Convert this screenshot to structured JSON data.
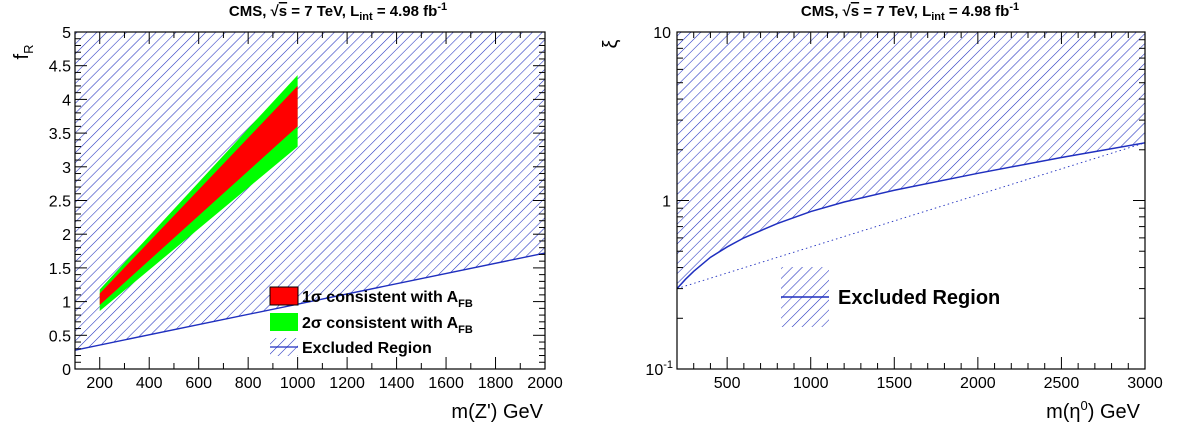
{
  "chart_data": [
    {
      "type": "area",
      "title": "CMS, √s = 7 TeV, L_int = 4.98 fb^-1",
      "title_parts": {
        "prefix": "CMS, ",
        "sqrt_symbol": "√",
        "sqrt_arg": "s",
        "energy": " = 7 TeV, L",
        "lumi_sub": "int",
        "lumi_value": " = 4.98 fb",
        "lumi_sup": "-1"
      },
      "xlabel": "m(Z') GeV",
      "ylabel": {
        "base": "f",
        "sub": "R"
      },
      "xlim": [
        100,
        2000
      ],
      "ylim": [
        0,
        5
      ],
      "x_ticks": [
        200,
        400,
        600,
        800,
        1000,
        1200,
        1400,
        1600,
        1800,
        2000
      ],
      "y_ticks": [
        0,
        0.5,
        1,
        1.5,
        2,
        2.5,
        3,
        3.5,
        4,
        4.5,
        5
      ],
      "y_tick_labels": [
        "0",
        "0.5",
        "1",
        "1.5",
        "2",
        "2.5",
        "3",
        "3.5",
        "4",
        "4.5",
        "5"
      ],
      "excluded_boundary": {
        "x": [
          100,
          2000
        ],
        "y": [
          0.28,
          1.72
        ]
      },
      "band_2sigma": {
        "x": [
          200,
          1000
        ],
        "y_low": [
          0.86,
          3.3
        ],
        "y_high": [
          1.18,
          4.36
        ]
      },
      "band_1sigma": {
        "x": [
          200,
          1000
        ],
        "y_low": [
          0.95,
          3.6
        ],
        "y_high": [
          1.12,
          4.2
        ]
      },
      "legend": [
        {
          "label": "1σ consistent with A",
          "sub": "FB",
          "kind": "red"
        },
        {
          "label": "2σ consistent with A",
          "sub": "FB",
          "kind": "green"
        },
        {
          "label": "Excluded Region",
          "sub": "",
          "kind": "hatch"
        }
      ],
      "legend_position": "bottom-right",
      "colors": {
        "one_sigma": "#ff0000",
        "two_sigma": "#00ff00",
        "excluded": "#1f2fbf"
      }
    },
    {
      "type": "area",
      "title": "CMS, √s = 7 TeV, L_int = 4.98 fb^-1",
      "title_parts": {
        "prefix": "CMS, ",
        "sqrt_symbol": "√",
        "sqrt_arg": "s",
        "energy": " = 7 TeV, L",
        "lumi_sub": "int",
        "lumi_value": " = 4.98 fb",
        "lumi_sup": "-1"
      },
      "xlabel": {
        "base": "m(η",
        "sup": "0",
        "tail": ") GeV"
      },
      "ylabel": "ξ",
      "xlim": [
        200,
        3000
      ],
      "ylim": [
        0.1,
        10
      ],
      "log_y": true,
      "x_ticks": [
        500,
        1000,
        1500,
        2000,
        2500,
        3000
      ],
      "y_ticks": [
        {
          "value": 0.1,
          "base": "10",
          "sup": "-1"
        },
        {
          "value": 1,
          "base": "1",
          "sup": ""
        },
        {
          "value": 10,
          "base": "10",
          "sup": ""
        }
      ],
      "excluded_boundary": {
        "x": [
          200,
          250,
          300,
          400,
          500,
          600,
          800,
          1000,
          1200,
          1500,
          2000,
          2500,
          3000
        ],
        "y": [
          0.3,
          0.34,
          0.38,
          0.46,
          0.53,
          0.6,
          0.73,
          0.86,
          0.98,
          1.15,
          1.45,
          1.8,
          2.2
        ]
      },
      "dotted_line": {
        "x": [
          200,
          3000
        ],
        "y": [
          0.3,
          2.2
        ]
      },
      "legend": [
        {
          "label": "Excluded Region",
          "kind": "hatch"
        }
      ],
      "legend_position": "center",
      "colors": {
        "excluded": "#1f2fbf"
      }
    }
  ]
}
